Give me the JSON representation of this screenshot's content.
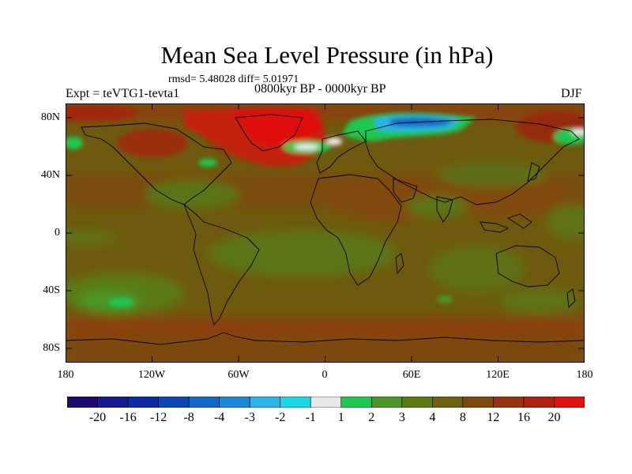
{
  "title": "Mean Sea Level Pressure (in hPa)",
  "stats": "rmsd= 5.48028 diff= 5.01971",
  "experiment": "Expt = teVTG1-tevta1",
  "period": "0800kyr BP - 0000kyr BP",
  "season": "DJF",
  "map": {
    "lat_labels": [
      "80N",
      "40N",
      "0",
      "40S",
      "80S"
    ],
    "lon_labels": [
      "180",
      "120W",
      "60W",
      "0",
      "60E",
      "120E",
      "180"
    ]
  },
  "colorbar": {
    "colors": [
      "#1e0a6e",
      "#161a8c",
      "#0d2aa8",
      "#0a48b8",
      "#1466c8",
      "#1e88d8",
      "#2ab4e8",
      "#18d8e8",
      "#e8e8e8",
      "#1ec850",
      "#4a9628",
      "#5c7a14",
      "#6e6210",
      "#7c4a0a",
      "#963412",
      "#b0200e",
      "#e0100e"
    ],
    "labels": [
      "-20",
      "-16",
      "-12",
      "-8",
      "-4",
      "-3",
      "-2",
      "-1",
      "1",
      "2",
      "3",
      "4",
      "8",
      "12",
      "16",
      "20"
    ]
  }
}
